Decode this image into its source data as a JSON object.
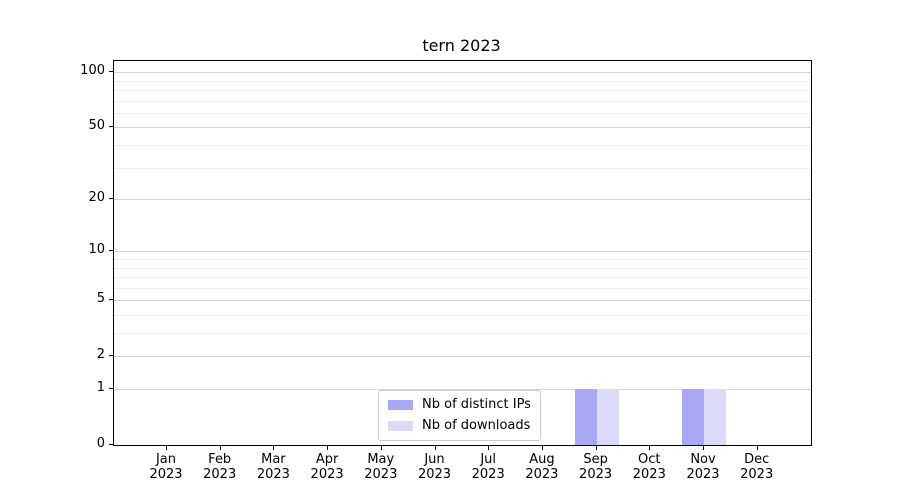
{
  "chart_data": {
    "type": "bar",
    "title": "tern 2023",
    "categories": [
      "Jan 2023",
      "Feb 2023",
      "Mar 2023",
      "Apr 2023",
      "May 2023",
      "Jun 2023",
      "Jul 2023",
      "Aug 2023",
      "Sep 2023",
      "Oct 2023",
      "Nov 2023",
      "Dec 2023"
    ],
    "series": [
      {
        "name": "Nb of distinct IPs",
        "color": "#a8a8f7",
        "values": [
          0,
          0,
          0,
          0,
          0,
          0,
          0,
          0,
          1,
          0,
          1,
          0
        ]
      },
      {
        "name": "Nb of downloads",
        "color": "#dbdbf9",
        "values": [
          0,
          0,
          0,
          0,
          0,
          0,
          0,
          0,
          1,
          0,
          1,
          0
        ]
      }
    ],
    "xlabel": "",
    "ylabel": "",
    "yscale": "log1p",
    "ylim": [
      0,
      115
    ],
    "yticks": [
      0,
      1,
      2,
      5,
      10,
      20,
      50,
      100
    ],
    "yticks_minor": [
      3,
      4,
      6,
      7,
      8,
      9,
      30,
      40,
      60,
      70,
      80,
      90
    ],
    "grid": "horizontal",
    "legend_position": "bottom-center",
    "colors": {
      "grid_major": "#d4d4d4",
      "grid_minor": "#efefef",
      "spine": "#000000",
      "text": "#000000",
      "legend_border": "#cccccc",
      "background": "#ffffff"
    }
  }
}
